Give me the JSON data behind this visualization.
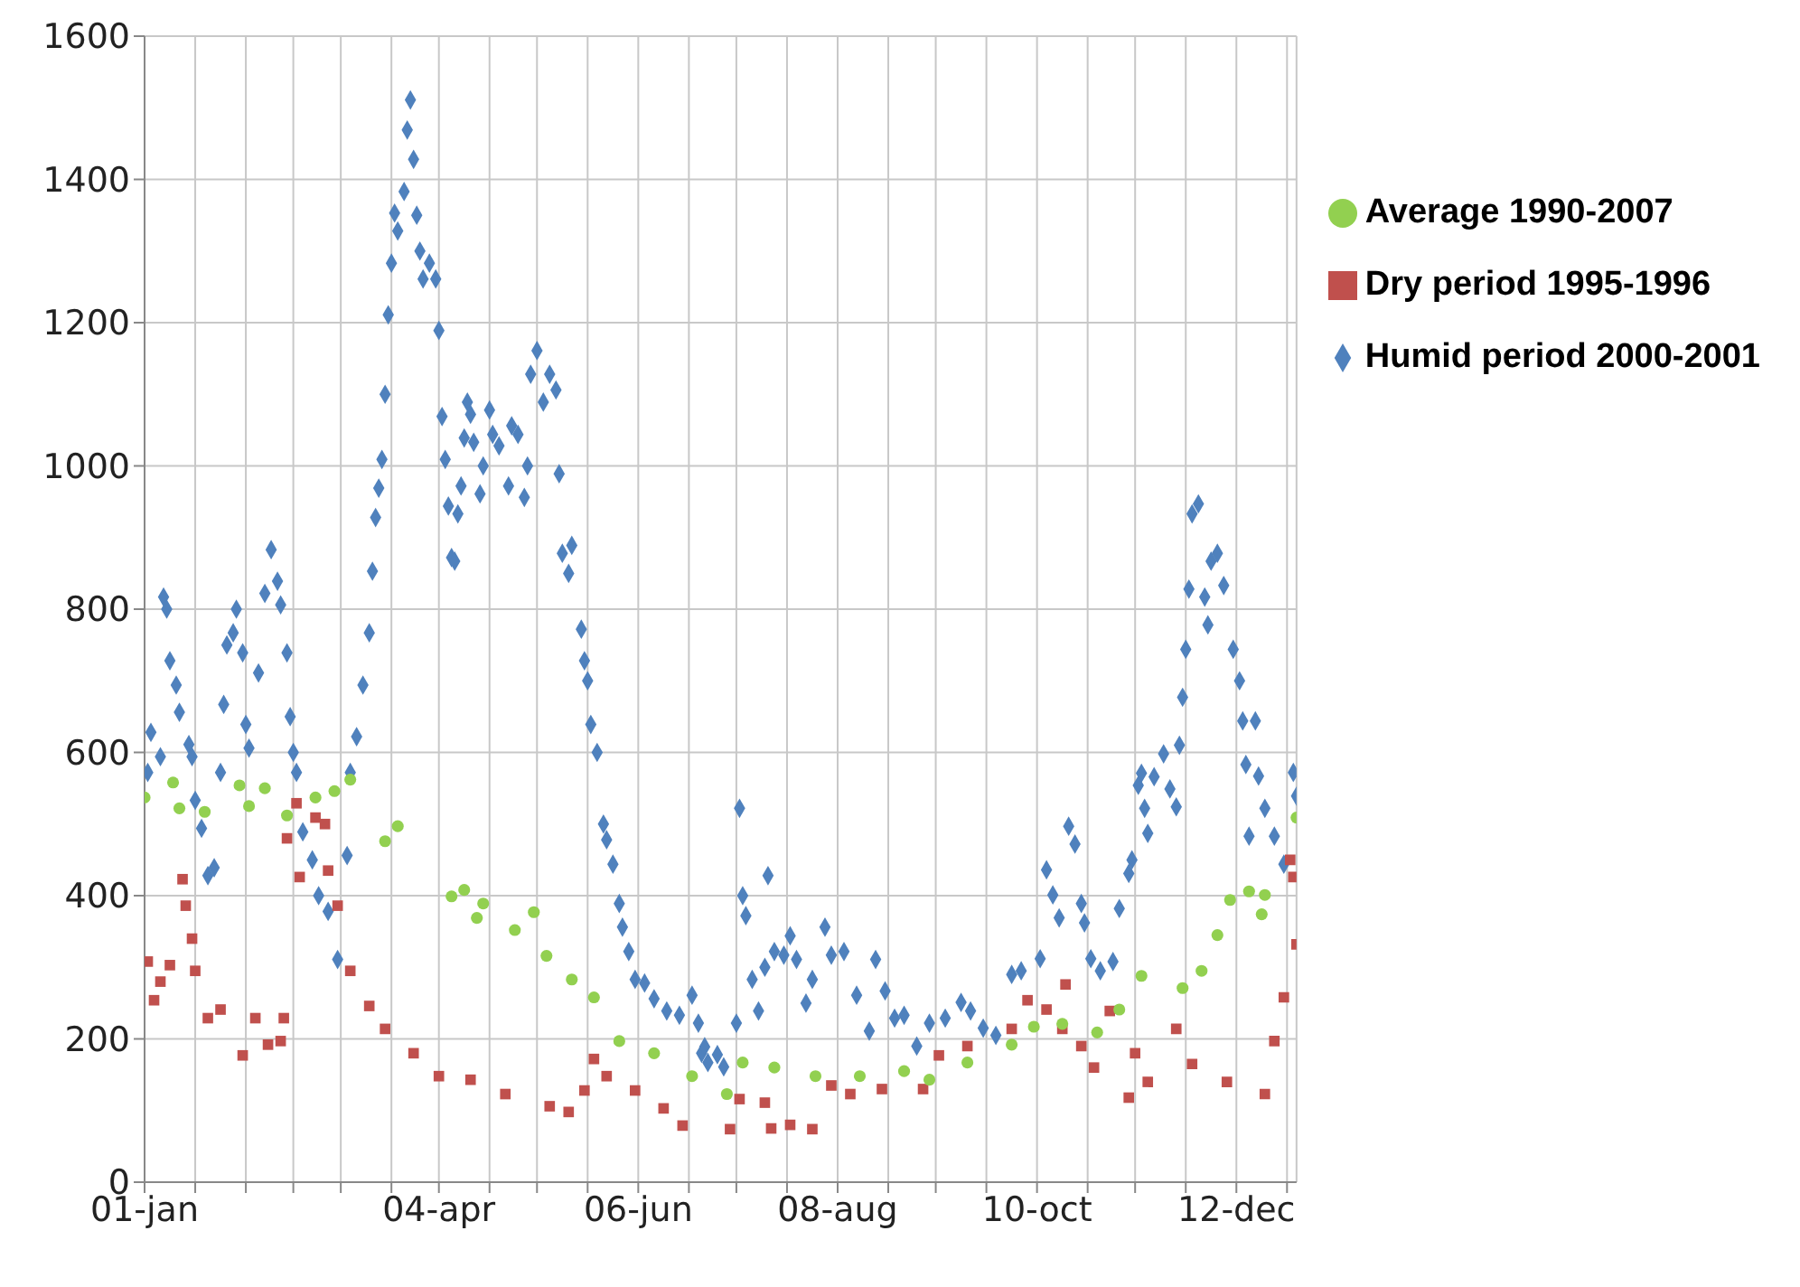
{
  "chart_data": {
    "type": "scatter",
    "legend": "top right",
    "grid": true,
    "ylim": [
      0,
      1600
    ],
    "yticks": [
      0,
      200,
      400,
      600,
      800,
      1000,
      1200,
      1400,
      1600
    ],
    "xlim": [
      "--01-01",
      "--12-31"
    ],
    "xticks": [
      {
        "value": "--01-01",
        "label": "01-jan"
      },
      {
        "value": "--01-17",
        "label": null
      },
      {
        "value": "--02-02",
        "label": null
      },
      {
        "value": "--02-17",
        "label": null
      },
      {
        "value": "--03-04",
        "label": null
      },
      {
        "value": "--03-20",
        "label": null
      },
      {
        "value": "--04-04",
        "label": "04-apr"
      },
      {
        "value": "--04-20",
        "label": null
      },
      {
        "value": "--05-05",
        "label": null
      },
      {
        "value": "--05-21",
        "label": null
      },
      {
        "value": "--06-06",
        "label": "06-jun"
      },
      {
        "value": "--06-22",
        "label": null
      },
      {
        "value": "--07-07",
        "label": null
      },
      {
        "value": "--07-23",
        "label": null
      },
      {
        "value": "--08-08",
        "label": "08-aug"
      },
      {
        "value": "--08-24",
        "label": null
      },
      {
        "value": "--09-08",
        "label": null
      },
      {
        "value": "--09-24",
        "label": null
      },
      {
        "value": "--10-10",
        "label": "10-oct"
      },
      {
        "value": "--10-26",
        "label": null
      },
      {
        "value": "--11-10",
        "label": null
      },
      {
        "value": "--11-26",
        "label": null
      },
      {
        "value": "--12-12",
        "label": "12-dec"
      },
      {
        "value": "--12-28",
        "label": null
      }
    ],
    "series": [
      {
        "name": "Humid period 2000-2001",
        "color": "#4f81bd",
        "marker": "diamond",
        "x": [
          "--01-02",
          "--01-03",
          "--01-06",
          "--01-07",
          "--01-08",
          "--01-09",
          "--01-11",
          "--01-12",
          "--01-15",
          "--01-16",
          "--01-17",
          "--01-19",
          "--01-21",
          "--01-23",
          "--01-25",
          "--01-26",
          "--01-27",
          "--01-29",
          "--01-30",
          "--02-01",
          "--02-02",
          "--02-03",
          "--02-06",
          "--02-08",
          "--02-10",
          "--02-12",
          "--02-13",
          "--02-15",
          "--02-16",
          "--02-17",
          "--02-18",
          "--02-20",
          "--02-23",
          "--02-25",
          "--02-28",
          "--03-03",
          "--03-06",
          "--03-07",
          "--03-09",
          "--03-11",
          "--03-13",
          "--03-14",
          "--03-15",
          "--03-16",
          "--03-17",
          "--03-18",
          "--03-19",
          "--03-20",
          "--03-21",
          "--03-22",
          "--03-24",
          "--03-25",
          "--03-26",
          "--03-27",
          "--03-28",
          "--03-29",
          "--03-30",
          "--04-01",
          "--04-03",
          "--04-04",
          "--04-05",
          "--04-06",
          "--04-07",
          "--04-08",
          "--04-09",
          "--04-10",
          "--04-11",
          "--04-12",
          "--04-13",
          "--04-14",
          "--04-15",
          "--04-17",
          "--04-18",
          "--04-20",
          "--04-21",
          "--04-23",
          "--04-26",
          "--04-27",
          "--04-29",
          "--05-01",
          "--05-02",
          "--05-03",
          "--05-05",
          "--05-07",
          "--05-09",
          "--05-11",
          "--05-12",
          "--05-13",
          "--05-15",
          "--05-16",
          "--05-19",
          "--05-20",
          "--05-21",
          "--05-22",
          "--05-24",
          "--05-26",
          "--05-27",
          "--05-29",
          "--05-31",
          "--06-01",
          "--06-03",
          "--06-05",
          "--06-08",
          "--06-11",
          "--06-15",
          "--06-19",
          "--06-23",
          "--06-25",
          "--06-26",
          "--06-27",
          "--06-28",
          "--07-01",
          "--07-03",
          "--07-07",
          "--07-08",
          "--07-09",
          "--07-10",
          "--07-12",
          "--07-14",
          "--07-16",
          "--07-17",
          "--07-19",
          "--07-22",
          "--07-24",
          "--07-26",
          "--07-29",
          "--07-31",
          "--08-04",
          "--08-06",
          "--08-10",
          "--08-14",
          "--08-18",
          "--08-20",
          "--08-23",
          "--08-26",
          "--08-29",
          "--09-02",
          "--09-06",
          "--09-11",
          "--09-16",
          "--09-19",
          "--09-23",
          "--09-27",
          "--10-02",
          "--10-05",
          "--10-11",
          "--10-13",
          "--10-15",
          "--10-17",
          "--10-20",
          "--10-22",
          "--10-24",
          "--10-25",
          "--10-27",
          "--10-30",
          "--11-03",
          "--11-05",
          "--11-08",
          "--11-09",
          "--11-11",
          "--11-12",
          "--11-13",
          "--11-14",
          "--11-16",
          "--11-19",
          "--11-21",
          "--11-23",
          "--11-24",
          "--11-25",
          "--11-26",
          "--11-27",
          "--11-28",
          "--11-30",
          "--12-02",
          "--12-03",
          "--12-04",
          "--12-06",
          "--12-08",
          "--12-11",
          "--12-13",
          "--12-14",
          "--12-15",
          "--12-16",
          "--12-18",
          "--12-19",
          "--12-21",
          "--12-24",
          "--12-27",
          "--12-30",
          "--12-31"
        ],
        "values": [
          572,
          628,
          594,
          817,
          800,
          728,
          694,
          656,
          611,
          594,
          533,
          494,
          428,
          439,
          572,
          667,
          750,
          767,
          800,
          739,
          639,
          606,
          711,
          822,
          883,
          839,
          806,
          739,
          650,
          600,
          572,
          489,
          450,
          400,
          378,
          311,
          456,
          572,
          622,
          694,
          767,
          853,
          928,
          969,
          1009,
          1100,
          1211,
          1283,
          1353,
          1328,
          1383,
          1469,
          1511,
          1428,
          1350,
          1300,
          1261,
          1283,
          1261,
          1189,
          1069,
          1009,
          944,
          872,
          867,
          933,
          972,
          1039,
          1089,
          1072,
          1033,
          961,
          1000,
          1078,
          1044,
          1028,
          972,
          1056,
          1044,
          956,
          1000,
          1128,
          1161,
          1089,
          1128,
          1106,
          989,
          878,
          850,
          889,
          772,
          728,
          700,
          639,
          600,
          500,
          478,
          444,
          389,
          356,
          322,
          283,
          278,
          256,
          239,
          233,
          261,
          222,
          180,
          189,
          167,
          178,
          161,
          222,
          522,
          400,
          372,
          283,
          239,
          300,
          428,
          322,
          317,
          344,
          311,
          250,
          283,
          356,
          317,
          322,
          261,
          211,
          311,
          267,
          229,
          233,
          190,
          222,
          229,
          251,
          239,
          215,
          205,
          290,
          295,
          312,
          436,
          401,
          369,
          497,
          472,
          389,
          362,
          312,
          295,
          308,
          382,
          431,
          450,
          554,
          571,
          522,
          487,
          566,
          598,
          549,
          524,
          610,
          677,
          744,
          828,
          933,
          947,
          817,
          778,
          867,
          878,
          833,
          744,
          700,
          644,
          583,
          483,
          644,
          567,
          522,
          483,
          444,
          572,
          539
        ]
      },
      {
        "name": "Dry period 1995-1996",
        "color": "#c0504d",
        "marker": "square",
        "x": [
          "--01-02",
          "--01-04",
          "--01-06",
          "--01-09",
          "--01-13",
          "--01-14",
          "--01-16",
          "--01-17",
          "--01-21",
          "--01-25",
          "--02-01",
          "--02-05",
          "--02-09",
          "--02-13",
          "--02-14",
          "--02-15",
          "--02-18",
          "--02-19",
          "--02-24",
          "--02-27",
          "--02-28",
          "--03-03",
          "--03-07",
          "--03-13",
          "--03-18",
          "--03-27",
          "--04-04",
          "--04-14",
          "--04-25",
          "--05-09",
          "--05-15",
          "--05-20",
          "--05-23",
          "--05-27",
          "--06-05",
          "--06-14",
          "--06-20",
          "--07-05",
          "--07-08",
          "--07-16",
          "--07-18",
          "--07-24",
          "--07-31",
          "--08-06",
          "--08-12",
          "--08-22",
          "--09-04",
          "--09-09",
          "--09-18",
          "--10-02",
          "--10-07",
          "--10-13",
          "--10-18",
          "--10-19",
          "--10-24",
          "--10-28",
          "--11-02",
          "--11-08",
          "--11-10",
          "--11-14",
          "--11-23",
          "--11-28",
          "--12-09",
          "--12-21",
          "--12-24",
          "--12-27",
          "--12-29",
          "--12-30",
          "--12-31"
        ],
        "values": [
          308,
          254,
          280,
          303,
          423,
          386,
          340,
          295,
          229,
          241,
          177,
          229,
          192,
          197,
          229,
          480,
          529,
          426,
          509,
          500,
          435,
          386,
          295,
          246,
          214,
          180,
          148,
          143,
          123,
          106,
          98,
          128,
          172,
          148,
          128,
          103,
          79,
          74,
          116,
          111,
          75,
          80,
          74,
          135,
          123,
          130,
          130,
          177,
          190,
          214,
          254,
          241,
          214,
          276,
          190,
          160,
          239,
          118,
          180,
          140,
          214,
          165,
          140,
          123,
          197,
          258,
          450,
          426,
          332
        ]
      },
      {
        "name": "Average 1990-2007",
        "color": "#92d050",
        "marker": "circle",
        "x": [
          "--01-01",
          "--01-10",
          "--01-12",
          "--01-20",
          "--01-31",
          "--02-03",
          "--02-08",
          "--02-15",
          "--02-24",
          "--03-02",
          "--03-07",
          "--03-18",
          "--03-22",
          "--04-08",
          "--04-12",
          "--04-16",
          "--04-18",
          "--04-28",
          "--05-04",
          "--05-08",
          "--05-16",
          "--05-23",
          "--05-31",
          "--06-11",
          "--06-23",
          "--07-04",
          "--07-09",
          "--07-19",
          "--08-01",
          "--08-15",
          "--08-29",
          "--09-06",
          "--09-18",
          "--10-02",
          "--10-09",
          "--10-18",
          "--10-29",
          "--11-05",
          "--11-12",
          "--11-25",
          "--12-01",
          "--12-06",
          "--12-10",
          "--12-16",
          "--12-20",
          "--12-21",
          "--12-31"
        ],
        "values": [
          537,
          558,
          522,
          517,
          554,
          525,
          550,
          512,
          537,
          546,
          562,
          476,
          497,
          399,
          408,
          369,
          389,
          352,
          377,
          316,
          283,
          258,
          197,
          180,
          148,
          123,
          167,
          160,
          148,
          148,
          155,
          143,
          167,
          192,
          217,
          221,
          209,
          241,
          288,
          271,
          295,
          345,
          394,
          406,
          374,
          401,
          509
        ]
      }
    ]
  }
}
